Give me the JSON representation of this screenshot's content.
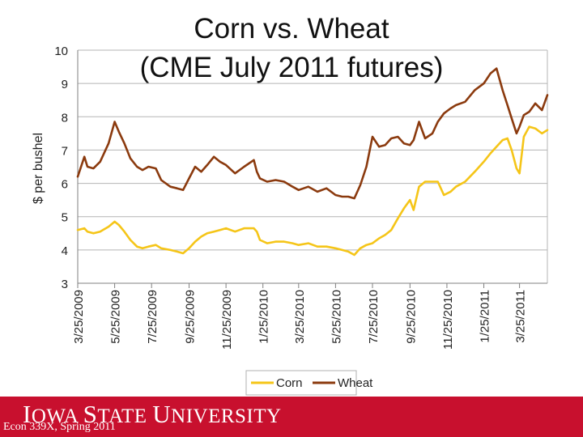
{
  "title_line1": "Corn vs. Wheat",
  "title_line2": "(CME July 2011 futures)",
  "footer": {
    "logo": "IOWA STATE UNIVERSITY",
    "course": "Econ 339X, Spring 2011"
  },
  "colors": {
    "corn": "#f5c518",
    "wheat": "#8b3a0e",
    "footer_bar": "#c8102e"
  },
  "chart_data": {
    "type": "line",
    "ylabel": "$ per bushel",
    "xlabel": "",
    "ylim": [
      3,
      10
    ],
    "yticks": [
      3,
      4,
      5,
      6,
      7,
      8,
      9,
      10
    ],
    "xlim": [
      "3/25/2009",
      "5/10/2011"
    ],
    "xticks": [
      "3/25/2009",
      "5/25/2009",
      "7/25/2009",
      "9/25/2009",
      "11/25/2009",
      "1/25/2010",
      "3/25/2010",
      "5/25/2010",
      "7/25/2010",
      "9/25/2010",
      "11/25/2010",
      "1/25/2011",
      "3/25/2011"
    ],
    "legend_position": "bottom",
    "series": [
      {
        "name": "Corn",
        "points": [
          [
            "3/25/2009",
            4.6
          ],
          [
            "4/5/2009",
            4.65
          ],
          [
            "4/10/2009",
            4.55
          ],
          [
            "4/20/2009",
            4.5
          ],
          [
            "5/1/2009",
            4.55
          ],
          [
            "5/15/2009",
            4.7
          ],
          [
            "5/25/2009",
            4.85
          ],
          [
            "6/1/2009",
            4.75
          ],
          [
            "6/10/2009",
            4.55
          ],
          [
            "6/20/2009",
            4.3
          ],
          [
            "7/1/2009",
            4.1
          ],
          [
            "7/10/2009",
            4.05
          ],
          [
            "7/20/2009",
            4.1
          ],
          [
            "8/1/2009",
            4.15
          ],
          [
            "8/10/2009",
            4.05
          ],
          [
            "8/25/2009",
            4.0
          ],
          [
            "9/5/2009",
            3.95
          ],
          [
            "9/15/2009",
            3.9
          ],
          [
            "9/25/2009",
            4.05
          ],
          [
            "10/5/2009",
            4.25
          ],
          [
            "10/15/2009",
            4.4
          ],
          [
            "10/25/2009",
            4.5
          ],
          [
            "11/5/2009",
            4.55
          ],
          [
            "11/15/2009",
            4.6
          ],
          [
            "11/25/2009",
            4.65
          ],
          [
            "12/10/2009",
            4.55
          ],
          [
            "12/25/2009",
            4.65
          ],
          [
            "1/10/2010",
            4.65
          ],
          [
            "1/15/2010",
            4.55
          ],
          [
            "1/20/2010",
            4.3
          ],
          [
            "2/1/2010",
            4.2
          ],
          [
            "2/15/2010",
            4.25
          ],
          [
            "3/1/2010",
            4.25
          ],
          [
            "3/15/2010",
            4.2
          ],
          [
            "3/25/2010",
            4.15
          ],
          [
            "4/10/2010",
            4.2
          ],
          [
            "4/25/2010",
            4.1
          ],
          [
            "5/10/2010",
            4.1
          ],
          [
            "5/25/2010",
            4.05
          ],
          [
            "6/5/2010",
            4.0
          ],
          [
            "6/15/2010",
            3.95
          ],
          [
            "6/25/2010",
            3.85
          ],
          [
            "7/5/2010",
            4.05
          ],
          [
            "7/15/2010",
            4.15
          ],
          [
            "7/25/2010",
            4.2
          ],
          [
            "8/5/2010",
            4.35
          ],
          [
            "8/15/2010",
            4.45
          ],
          [
            "8/25/2010",
            4.6
          ],
          [
            "9/5/2010",
            4.95
          ],
          [
            "9/15/2010",
            5.25
          ],
          [
            "9/25/2010",
            5.5
          ],
          [
            "10/1/2010",
            5.2
          ],
          [
            "10/10/2010",
            5.9
          ],
          [
            "10/20/2010",
            6.05
          ],
          [
            "11/1/2010",
            6.05
          ],
          [
            "11/10/2010",
            6.05
          ],
          [
            "11/20/2010",
            5.65
          ],
          [
            "12/1/2010",
            5.75
          ],
          [
            "12/10/2010",
            5.9
          ],
          [
            "12/25/2010",
            6.05
          ],
          [
            "1/10/2011",
            6.35
          ],
          [
            "1/25/2011",
            6.65
          ],
          [
            "2/5/2011",
            6.9
          ],
          [
            "2/15/2011",
            7.1
          ],
          [
            "2/25/2011",
            7.3
          ],
          [
            "3/5/2011",
            7.35
          ],
          [
            "3/12/2011",
            7.0
          ],
          [
            "3/20/2011",
            6.45
          ],
          [
            "3/25/2011",
            6.3
          ],
          [
            "4/1/2011",
            7.4
          ],
          [
            "4/10/2011",
            7.7
          ],
          [
            "4/20/2011",
            7.65
          ],
          [
            "5/1/2011",
            7.5
          ],
          [
            "5/10/2011",
            7.6
          ]
        ]
      },
      {
        "name": "Wheat",
        "points": [
          [
            "3/25/2009",
            6.2
          ],
          [
            "4/5/2009",
            6.8
          ],
          [
            "4/10/2009",
            6.5
          ],
          [
            "4/20/2009",
            6.45
          ],
          [
            "5/1/2009",
            6.65
          ],
          [
            "5/15/2009",
            7.2
          ],
          [
            "5/25/2009",
            7.85
          ],
          [
            "6/1/2009",
            7.55
          ],
          [
            "6/10/2009",
            7.2
          ],
          [
            "6/20/2009",
            6.75
          ],
          [
            "7/1/2009",
            6.5
          ],
          [
            "7/10/2009",
            6.4
          ],
          [
            "7/20/2009",
            6.5
          ],
          [
            "8/1/2009",
            6.45
          ],
          [
            "8/10/2009",
            6.1
          ],
          [
            "8/25/2009",
            5.9
          ],
          [
            "9/5/2009",
            5.85
          ],
          [
            "9/15/2009",
            5.8
          ],
          [
            "9/25/2009",
            6.15
          ],
          [
            "10/5/2009",
            6.5
          ],
          [
            "10/15/2009",
            6.35
          ],
          [
            "10/25/2009",
            6.55
          ],
          [
            "11/5/2009",
            6.8
          ],
          [
            "11/15/2009",
            6.65
          ],
          [
            "11/25/2009",
            6.55
          ],
          [
            "12/10/2009",
            6.3
          ],
          [
            "12/25/2009",
            6.5
          ],
          [
            "1/10/2010",
            6.7
          ],
          [
            "1/15/2010",
            6.35
          ],
          [
            "1/20/2010",
            6.15
          ],
          [
            "2/1/2010",
            6.05
          ],
          [
            "2/15/2010",
            6.1
          ],
          [
            "3/1/2010",
            6.05
          ],
          [
            "3/15/2010",
            5.9
          ],
          [
            "3/25/2010",
            5.8
          ],
          [
            "4/10/2010",
            5.9
          ],
          [
            "4/25/2010",
            5.75
          ],
          [
            "5/10/2010",
            5.85
          ],
          [
            "5/25/2010",
            5.65
          ],
          [
            "6/5/2010",
            5.6
          ],
          [
            "6/15/2010",
            5.6
          ],
          [
            "6/25/2010",
            5.55
          ],
          [
            "7/5/2010",
            5.95
          ],
          [
            "7/15/2010",
            6.5
          ],
          [
            "7/25/2010",
            7.4
          ],
          [
            "8/5/2010",
            7.1
          ],
          [
            "8/15/2010",
            7.15
          ],
          [
            "8/25/2010",
            7.35
          ],
          [
            "9/5/2010",
            7.4
          ],
          [
            "9/15/2010",
            7.2
          ],
          [
            "9/25/2010",
            7.15
          ],
          [
            "10/1/2010",
            7.3
          ],
          [
            "10/10/2010",
            7.85
          ],
          [
            "10/20/2010",
            7.35
          ],
          [
            "11/1/2010",
            7.5
          ],
          [
            "11/10/2010",
            7.85
          ],
          [
            "11/20/2010",
            8.1
          ],
          [
            "12/1/2010",
            8.25
          ],
          [
            "12/10/2010",
            8.35
          ],
          [
            "12/25/2010",
            8.45
          ],
          [
            "1/10/2011",
            8.8
          ],
          [
            "1/25/2011",
            9.0
          ],
          [
            "2/5/2011",
            9.3
          ],
          [
            "2/15/2011",
            9.45
          ],
          [
            "2/25/2011",
            8.8
          ],
          [
            "3/5/2011",
            8.35
          ],
          [
            "3/12/2011",
            7.95
          ],
          [
            "3/20/2011",
            7.5
          ],
          [
            "3/25/2011",
            7.7
          ],
          [
            "4/1/2011",
            8.05
          ],
          [
            "4/10/2011",
            8.15
          ],
          [
            "4/20/2011",
            8.4
          ],
          [
            "5/1/2011",
            8.2
          ],
          [
            "5/10/2011",
            8.65
          ]
        ]
      }
    ]
  }
}
